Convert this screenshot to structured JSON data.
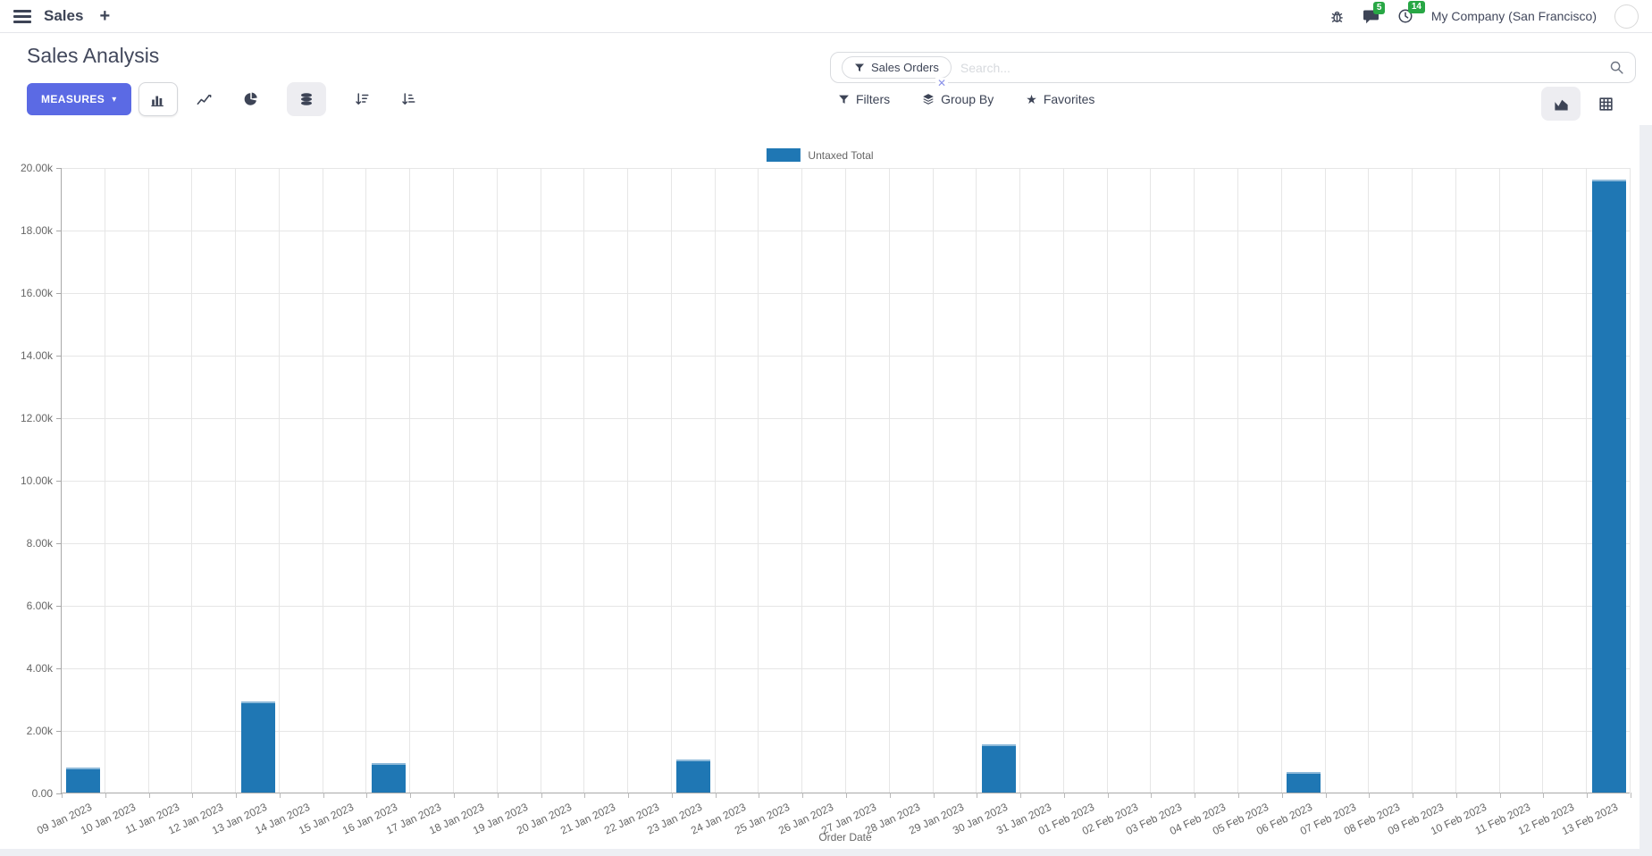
{
  "navbar": {
    "app_name": "Sales",
    "add_icon": "+",
    "messages_badge": "5",
    "activities_badge": "14",
    "company": "My Company (San Francisco)"
  },
  "control_panel": {
    "title": "Sales Analysis",
    "measures_label": "MEASURES",
    "caret_icon": "▾",
    "search": {
      "facet_label": "Sales Orders",
      "facet_remove_icon": "✕",
      "placeholder": "Search..."
    },
    "filters_label": "Filters",
    "groupby_label": "Group By",
    "favorites_label": "Favorites",
    "star_icon": "★"
  },
  "colors": {
    "accent": "#5b6ae4",
    "badge_green": "#28a745",
    "bar_blue": "#1f77b4"
  },
  "chart_data": {
    "type": "bar",
    "title": "",
    "xlabel": "Order Date",
    "ylabel": "",
    "ylim": [
      0,
      20000
    ],
    "ytick_step": 2000,
    "ytick_labels_top_down": [
      "20.00k",
      "18.00k",
      "16.00k",
      "14.00k",
      "12.00k",
      "10.00k",
      "8.00k",
      "6.00k",
      "4.00k",
      "2.00k",
      "0.00"
    ],
    "grid": true,
    "legend_position": "top-center",
    "legend": [
      "Untaxed Total"
    ],
    "categories": [
      "09 Jan 2023",
      "10 Jan 2023",
      "11 Jan 2023",
      "12 Jan 2023",
      "13 Jan 2023",
      "14 Jan 2023",
      "15 Jan 2023",
      "16 Jan 2023",
      "17 Jan 2023",
      "18 Jan 2023",
      "19 Jan 2023",
      "20 Jan 2023",
      "21 Jan 2023",
      "22 Jan 2023",
      "23 Jan 2023",
      "24 Jan 2023",
      "25 Jan 2023",
      "26 Jan 2023",
      "27 Jan 2023",
      "28 Jan 2023",
      "29 Jan 2023",
      "30 Jan 2023",
      "31 Jan 2023",
      "01 Feb 2023",
      "02 Feb 2023",
      "03 Feb 2023",
      "04 Feb 2023",
      "05 Feb 2023",
      "06 Feb 2023",
      "07 Feb 2023",
      "08 Feb 2023",
      "09 Feb 2023",
      "10 Feb 2023",
      "11 Feb 2023",
      "12 Feb 2023",
      "13 Feb 2023"
    ],
    "series": [
      {
        "name": "Untaxed Total",
        "color": "#1f77b4",
        "values": [
          800,
          0,
          0,
          0,
          2900,
          0,
          0,
          950,
          0,
          0,
          0,
          0,
          0,
          0,
          1050,
          0,
          0,
          0,
          0,
          0,
          0,
          1550,
          0,
          0,
          0,
          0,
          0,
          0,
          650,
          0,
          0,
          0,
          0,
          0,
          0,
          19600
        ]
      }
    ]
  }
}
